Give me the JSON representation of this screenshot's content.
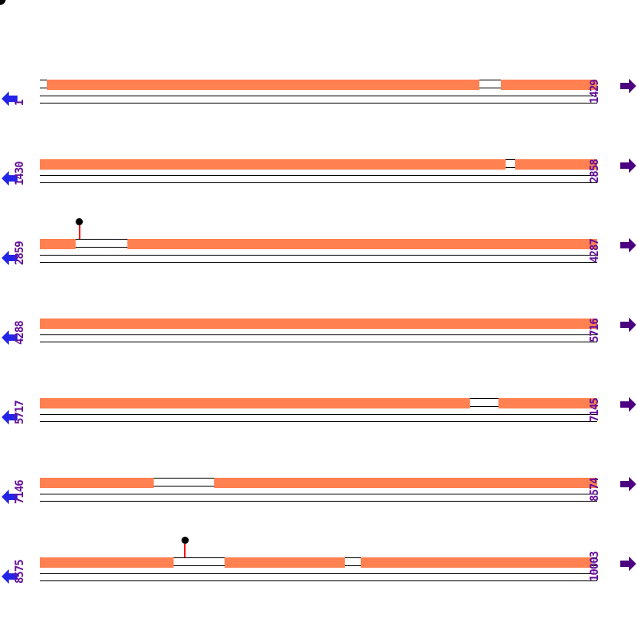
{
  "colors": {
    "background": "#FFFFFF",
    "feature": "#FF8050",
    "track_outline": "#000000",
    "ruler_line": "#000000",
    "left_arrow": "#2424E8",
    "right_arrow": "#4B0082",
    "label": "#661199",
    "marker_stem": "#FF0000",
    "marker_dot": "#000000"
  },
  "icons": {
    "left_arrow": "prev-line-arrow",
    "right_arrow": "next-line-arrow",
    "marker": "lollipop-marker",
    "corner": "clipped-dot"
  },
  "chart_data": {
    "type": "linear-feature-map",
    "sequence_start": 1,
    "sequence_end": 10003,
    "bp_per_row": 1429,
    "row_count": 7,
    "rows": [
      {
        "start_label": "1",
        "end_label": "1429",
        "start": 1,
        "end": 1429,
        "segments_frac": [
          [
            0.0129,
            0.7886
          ],
          [
            0.8271,
            1.0
          ]
        ],
        "markers_frac": []
      },
      {
        "start_label": "1430",
        "end_label": "2858",
        "start": 1430,
        "end": 2858,
        "segments_frac": [
          [
            0.0,
            0.8357
          ],
          [
            0.8529,
            1.0
          ]
        ],
        "markers_frac": []
      },
      {
        "start_label": "2859",
        "end_label": "4287",
        "start": 2859,
        "end": 4287,
        "segments_frac": [
          [
            0.0,
            0.0643
          ],
          [
            0.1571,
            1.0
          ]
        ],
        "markers_frac": [
          0.0714
        ]
      },
      {
        "start_label": "4288",
        "end_label": "5716",
        "start": 4288,
        "end": 5716,
        "segments_frac": [
          [
            0.0,
            1.0
          ]
        ],
        "markers_frac": []
      },
      {
        "start_label": "5717",
        "end_label": "7145",
        "start": 5717,
        "end": 7145,
        "segments_frac": [
          [
            0.0,
            0.7714
          ],
          [
            0.8229,
            1.0
          ]
        ],
        "markers_frac": []
      },
      {
        "start_label": "7146",
        "end_label": "8574",
        "start": 7146,
        "end": 8574,
        "segments_frac": [
          [
            0.0,
            0.2043
          ],
          [
            0.3129,
            1.0
          ]
        ],
        "markers_frac": []
      },
      {
        "start_label": "8575",
        "end_label": "10003",
        "start": 8575,
        "end": 10003,
        "segments_frac": [
          [
            0.0,
            0.24
          ],
          [
            0.3314,
            0.5471
          ],
          [
            0.5757,
            0.99
          ]
        ],
        "markers_frac": [
          0.26
        ]
      }
    ]
  }
}
